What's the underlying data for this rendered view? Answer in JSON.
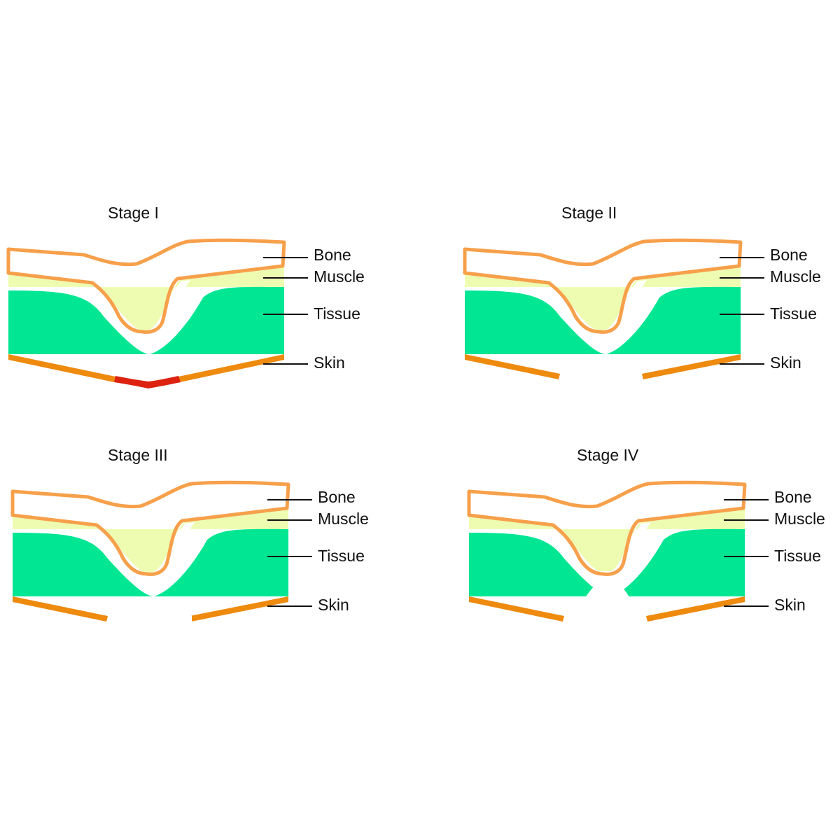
{
  "colors": {
    "bone_outline": "#F7A04B",
    "muscle": "#EEFCB2",
    "tissue": "#00E693",
    "skin": "#EE8A0E",
    "skin_damage": "#DD2210",
    "label_text": "#111111"
  },
  "labels": {
    "bone": "Bone",
    "muscle": "Muscle",
    "tissue": "Tissue",
    "skin": "Skin"
  },
  "stages": [
    {
      "title": "Stage I"
    },
    {
      "title": "Stage II"
    },
    {
      "title": "Stage III"
    },
    {
      "title": "Stage IV"
    }
  ]
}
